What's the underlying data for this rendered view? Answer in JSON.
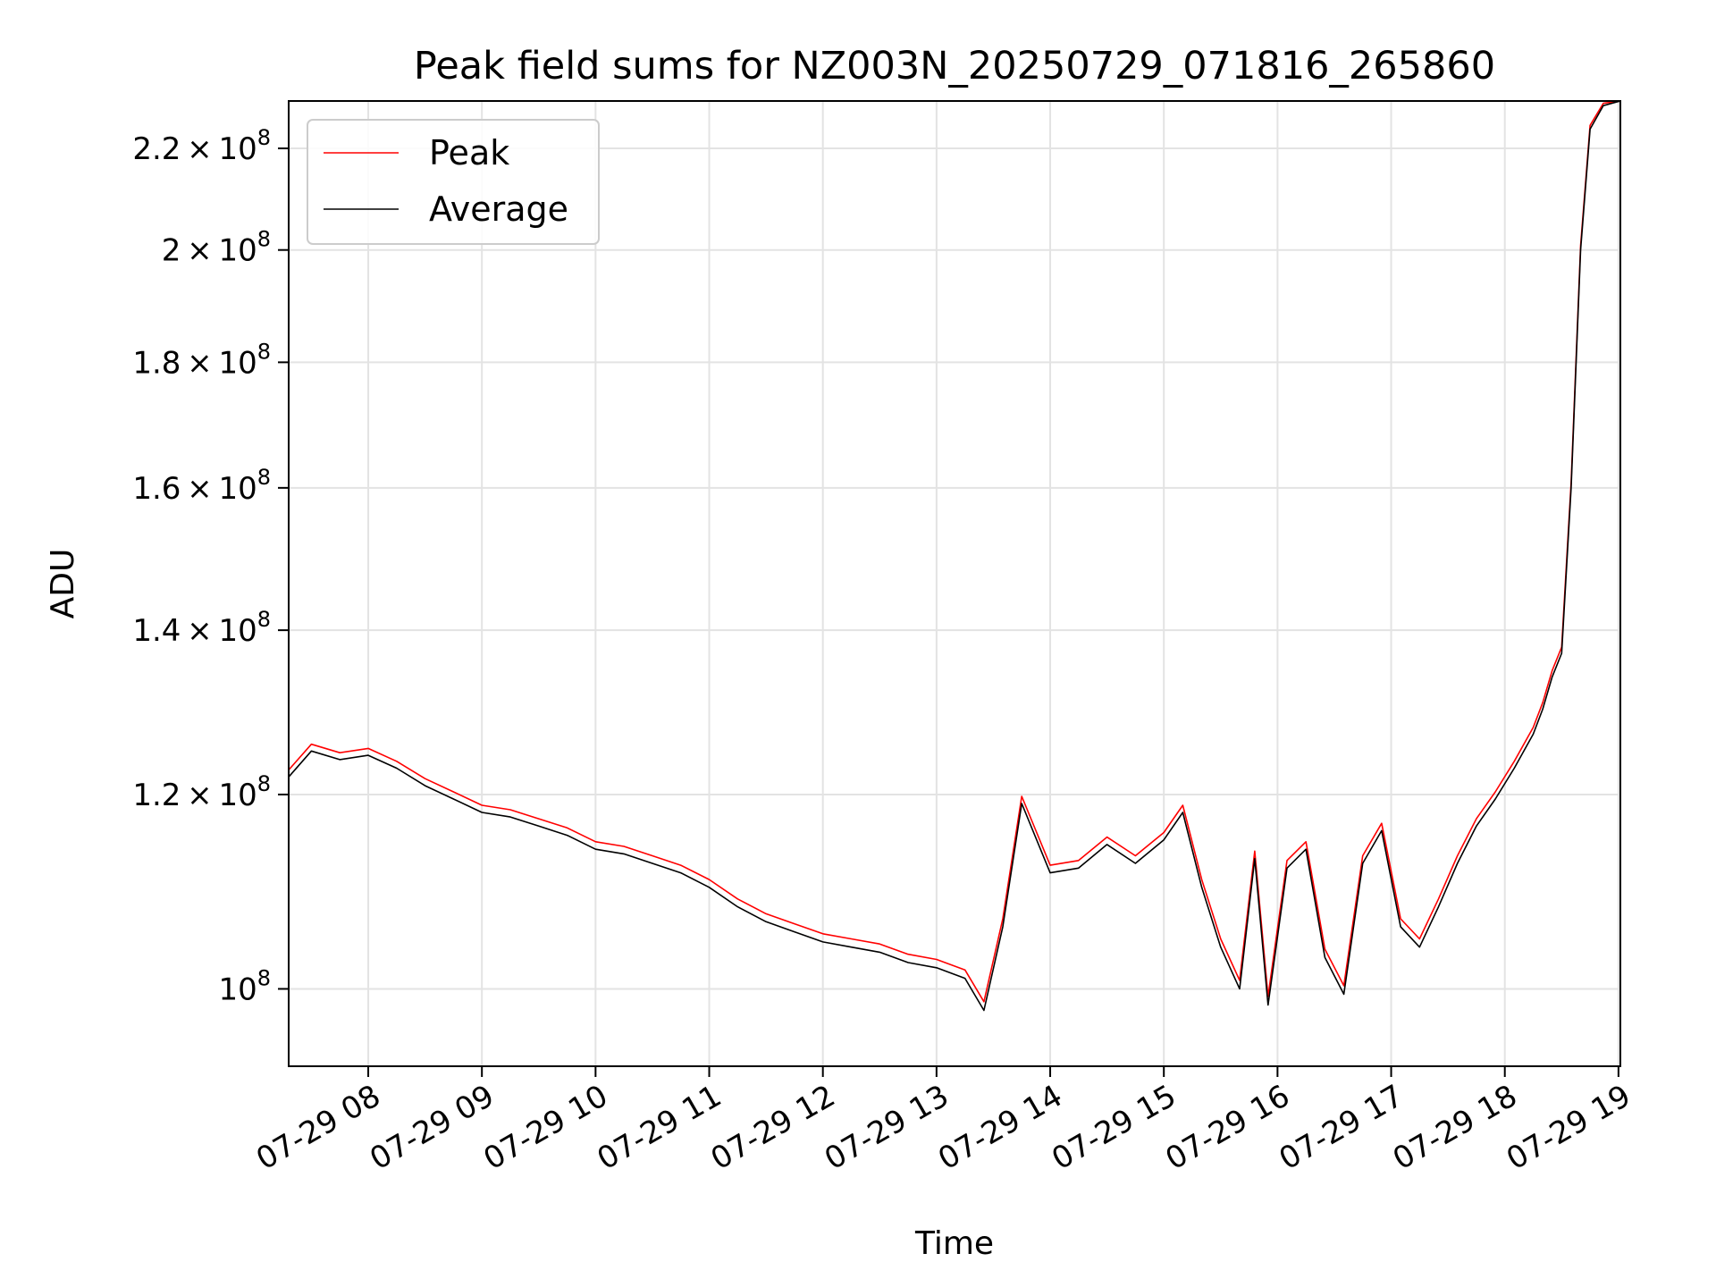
{
  "chart_data": {
    "type": "line",
    "title": "Peak field sums for NZ003N_20250729_071816_265860",
    "xlabel": "Time",
    "ylabel": "ADU",
    "y_scale": "log",
    "ylim": [
      93000000,
      230000000
    ],
    "xlim": [
      "2025-07-29 07:18",
      "2025-07-29 19:01"
    ],
    "grid": true,
    "legend_position": "upper-left",
    "x_ticks": [
      {
        "t": "2025-07-29 08:00",
        "label": "07-29 08"
      },
      {
        "t": "2025-07-29 09:00",
        "label": "07-29 09"
      },
      {
        "t": "2025-07-29 10:00",
        "label": "07-29 10"
      },
      {
        "t": "2025-07-29 11:00",
        "label": "07-29 11"
      },
      {
        "t": "2025-07-29 12:00",
        "label": "07-29 12"
      },
      {
        "t": "2025-07-29 13:00",
        "label": "07-29 13"
      },
      {
        "t": "2025-07-29 14:00",
        "label": "07-29 14"
      },
      {
        "t": "2025-07-29 15:00",
        "label": "07-29 15"
      },
      {
        "t": "2025-07-29 16:00",
        "label": "07-29 16"
      },
      {
        "t": "2025-07-29 17:00",
        "label": "07-29 17"
      },
      {
        "t": "2025-07-29 18:00",
        "label": "07-29 18"
      },
      {
        "t": "2025-07-29 19:00",
        "label": "07-29 19"
      }
    ],
    "y_ticks": [
      {
        "v": 100000000,
        "mant": "",
        "exp": "8",
        "base": "10"
      },
      {
        "v": 120000000,
        "mant": "1.2",
        "exp": "8",
        "base": "10"
      },
      {
        "v": 140000000,
        "mant": "1.4",
        "exp": "8",
        "base": "10"
      },
      {
        "v": 160000000,
        "mant": "1.6",
        "exp": "8",
        "base": "10"
      },
      {
        "v": 180000000,
        "mant": "1.8",
        "exp": "8",
        "base": "10"
      },
      {
        "v": 200000000,
        "mant": "2",
        "exp": "8",
        "base": "10"
      },
      {
        "v": 220000000,
        "mant": "2.2",
        "exp": "8",
        "base": "10"
      }
    ],
    "series": [
      {
        "name": "Average",
        "color": "#000000",
        "x": [
          "2025-07-29 07:18",
          "2025-07-29 07:30",
          "2025-07-29 07:45",
          "2025-07-29 08:00",
          "2025-07-29 08:15",
          "2025-07-29 08:30",
          "2025-07-29 08:45",
          "2025-07-29 09:00",
          "2025-07-29 09:15",
          "2025-07-29 09:30",
          "2025-07-29 09:45",
          "2025-07-29 10:00",
          "2025-07-29 10:15",
          "2025-07-29 10:30",
          "2025-07-29 10:45",
          "2025-07-29 11:00",
          "2025-07-29 11:15",
          "2025-07-29 11:30",
          "2025-07-29 11:45",
          "2025-07-29 12:00",
          "2025-07-29 12:15",
          "2025-07-29 12:30",
          "2025-07-29 12:45",
          "2025-07-29 13:00",
          "2025-07-29 13:15",
          "2025-07-29 13:25",
          "2025-07-29 13:35",
          "2025-07-29 13:45",
          "2025-07-29 14:00",
          "2025-07-29 14:15",
          "2025-07-29 14:30",
          "2025-07-29 14:45",
          "2025-07-29 15:00",
          "2025-07-29 15:10",
          "2025-07-29 15:20",
          "2025-07-29 15:30",
          "2025-07-29 15:40",
          "2025-07-29 15:48",
          "2025-07-29 15:55",
          "2025-07-29 16:05",
          "2025-07-29 16:15",
          "2025-07-29 16:25",
          "2025-07-29 16:35",
          "2025-07-29 16:45",
          "2025-07-29 16:55",
          "2025-07-29 17:05",
          "2025-07-29 17:15",
          "2025-07-29 17:25",
          "2025-07-29 17:35",
          "2025-07-29 17:45",
          "2025-07-29 17:55",
          "2025-07-29 18:05",
          "2025-07-29 18:15",
          "2025-07-29 18:20",
          "2025-07-29 18:25",
          "2025-07-29 18:30",
          "2025-07-29 18:35",
          "2025-07-29 18:40",
          "2025-07-29 18:45",
          "2025-07-29 18:52",
          "2025-07-29 19:01"
        ],
        "values": [
          122000000,
          125000000,
          124000000,
          124500000,
          123000000,
          121000000,
          119500000,
          118000000,
          117500000,
          116500000,
          115500000,
          114000000,
          113500000,
          112500000,
          111500000,
          110000000,
          108000000,
          106500000,
          105500000,
          104500000,
          104000000,
          103500000,
          102500000,
          102000000,
          101000000,
          98000000,
          106000000,
          119000000,
          111500000,
          112000000,
          114500000,
          112500000,
          115000000,
          118000000,
          110000000,
          104000000,
          100000000,
          113000000,
          98500000,
          112000000,
          114000000,
          103000000,
          99500000,
          112500000,
          116000000,
          106000000,
          104000000,
          108000000,
          112500000,
          116500000,
          119500000,
          123000000,
          127000000,
          130000000,
          134000000,
          137000000,
          160000000,
          200000000,
          224000000,
          229000000,
          230000000
        ]
      },
      {
        "name": "Peak",
        "color": "#ff0000",
        "x": [
          "2025-07-29 07:18",
          "2025-07-29 07:30",
          "2025-07-29 07:45",
          "2025-07-29 08:00",
          "2025-07-29 08:15",
          "2025-07-29 08:30",
          "2025-07-29 08:45",
          "2025-07-29 09:00",
          "2025-07-29 09:15",
          "2025-07-29 09:30",
          "2025-07-29 09:45",
          "2025-07-29 10:00",
          "2025-07-29 10:15",
          "2025-07-29 10:30",
          "2025-07-29 10:45",
          "2025-07-29 11:00",
          "2025-07-29 11:15",
          "2025-07-29 11:30",
          "2025-07-29 11:45",
          "2025-07-29 12:00",
          "2025-07-29 12:15",
          "2025-07-29 12:30",
          "2025-07-29 12:45",
          "2025-07-29 13:00",
          "2025-07-29 13:15",
          "2025-07-29 13:25",
          "2025-07-29 13:35",
          "2025-07-29 13:45",
          "2025-07-29 14:00",
          "2025-07-29 14:15",
          "2025-07-29 14:30",
          "2025-07-29 14:45",
          "2025-07-29 15:00",
          "2025-07-29 15:10",
          "2025-07-29 15:20",
          "2025-07-29 15:30",
          "2025-07-29 15:40",
          "2025-07-29 15:48",
          "2025-07-29 15:55",
          "2025-07-29 16:05",
          "2025-07-29 16:15",
          "2025-07-29 16:25",
          "2025-07-29 16:35",
          "2025-07-29 16:45",
          "2025-07-29 16:55",
          "2025-07-29 17:05",
          "2025-07-29 17:15",
          "2025-07-29 17:25",
          "2025-07-29 17:35",
          "2025-07-29 17:45",
          "2025-07-29 17:55",
          "2025-07-29 18:05",
          "2025-07-29 18:15",
          "2025-07-29 18:20",
          "2025-07-29 18:25",
          "2025-07-29 18:30",
          "2025-07-29 18:35",
          "2025-07-29 18:40",
          "2025-07-29 18:45",
          "2025-07-29 18:52",
          "2025-07-29 19:01"
        ],
        "values": [
          122800000,
          125800000,
          124800000,
          125300000,
          123800000,
          121800000,
          120300000,
          118800000,
          118300000,
          117300000,
          116300000,
          114800000,
          114300000,
          113300000,
          112300000,
          110800000,
          108800000,
          107300000,
          106300000,
          105300000,
          104800000,
          104300000,
          103300000,
          102800000,
          101800000,
          98800000,
          106800000,
          119800000,
          112300000,
          112800000,
          115300000,
          113300000,
          115800000,
          118800000,
          110800000,
          104800000,
          100800000,
          113800000,
          99300000,
          112800000,
          114800000,
          103800000,
          100300000,
          113300000,
          116800000,
          106800000,
          104800000,
          108800000,
          113300000,
          117300000,
          120300000,
          123800000,
          127800000,
          130800000,
          134800000,
          137800000,
          160800000,
          200800000,
          224800000,
          229500000,
          230000000
        ]
      }
    ]
  }
}
